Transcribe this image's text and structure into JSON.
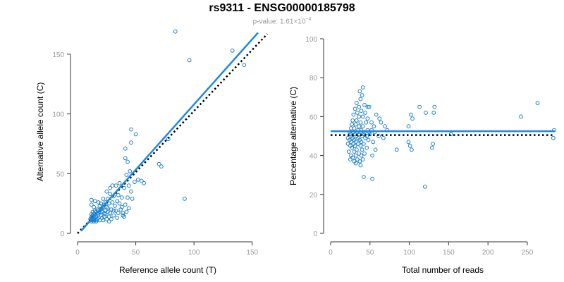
{
  "header": {
    "title": "rs9311 - ENSG00000185798",
    "pvalue_label": "p-value: 1.61×10",
    "pvalue_exponent": "−4"
  },
  "colors": {
    "points": "#1f7fc9",
    "fit_line": "#1e88e5",
    "reference_line": "#000000",
    "axis": "#333333",
    "tick_label": "#999999"
  },
  "chart_data": [
    {
      "type": "scatter",
      "xlabel": "Reference allele count (T)",
      "ylabel": "Alternative allele count (C)",
      "xlim": [
        0,
        155
      ],
      "ylim": [
        0,
        170
      ],
      "xticks": [
        0,
        50,
        100,
        150
      ],
      "yticks": [
        0,
        50,
        100,
        150
      ],
      "grid": false,
      "fit_line": [
        [
          3,
          2
        ],
        [
          155,
          168
        ]
      ],
      "reference_line": [
        [
          0,
          0
        ],
        [
          163,
          167
        ]
      ],
      "points": [
        [
          84,
          169
        ],
        [
          96,
          145
        ],
        [
          133,
          153
        ],
        [
          143,
          141
        ],
        [
          46,
          87
        ],
        [
          50,
          83
        ],
        [
          46,
          76
        ],
        [
          78,
          79
        ],
        [
          41,
          71
        ],
        [
          70,
          58
        ],
        [
          72,
          56
        ],
        [
          41,
          63
        ],
        [
          43,
          60
        ],
        [
          45,
          52
        ],
        [
          42,
          49
        ],
        [
          52,
          45
        ],
        [
          49,
          43
        ],
        [
          55,
          44
        ],
        [
          57,
          42
        ],
        [
          44,
          40
        ],
        [
          40,
          38
        ],
        [
          36,
          42
        ],
        [
          33,
          40
        ],
        [
          30,
          40
        ],
        [
          28,
          38
        ],
        [
          25,
          35
        ],
        [
          28,
          33
        ],
        [
          31,
          31
        ],
        [
          35,
          32
        ],
        [
          38,
          30
        ],
        [
          43,
          30
        ],
        [
          47,
          29
        ],
        [
          92,
          29
        ],
        [
          46,
          35
        ],
        [
          22,
          29
        ],
        [
          26,
          29
        ],
        [
          24,
          26
        ],
        [
          20,
          25
        ],
        [
          18,
          26
        ],
        [
          15,
          27
        ],
        [
          12,
          28
        ],
        [
          12,
          24
        ],
        [
          14,
          22
        ],
        [
          17,
          20
        ],
        [
          19,
          23
        ],
        [
          21,
          21
        ],
        [
          23,
          24
        ],
        [
          25,
          22
        ],
        [
          27,
          25
        ],
        [
          30,
          26
        ],
        [
          32,
          23
        ],
        [
          34,
          27
        ],
        [
          36,
          25
        ],
        [
          29,
          20
        ],
        [
          26,
          18
        ],
        [
          23,
          17
        ],
        [
          20,
          15
        ],
        [
          18,
          13
        ],
        [
          16,
          14
        ],
        [
          14,
          12
        ],
        [
          13,
          13
        ],
        [
          12,
          12
        ],
        [
          13,
          15
        ],
        [
          15,
          16
        ],
        [
          16,
          18
        ],
        [
          18,
          19
        ],
        [
          21,
          18
        ],
        [
          24,
          16
        ],
        [
          27,
          14
        ],
        [
          31,
          15
        ],
        [
          33,
          19
        ],
        [
          37,
          20
        ],
        [
          39,
          17
        ],
        [
          42,
          18
        ],
        [
          39,
          15
        ],
        [
          34,
          13
        ],
        [
          29,
          12
        ],
        [
          25,
          12
        ],
        [
          22,
          11
        ],
        [
          19,
          11
        ],
        [
          17,
          12
        ],
        [
          14,
          10
        ],
        [
          12,
          10
        ],
        [
          12,
          11
        ],
        [
          13,
          11
        ],
        [
          14,
          14
        ],
        [
          16,
          10
        ],
        [
          18,
          16
        ],
        [
          20,
          20
        ],
        [
          22,
          22
        ],
        [
          15,
          19
        ],
        [
          17,
          17
        ],
        [
          13,
          18
        ],
        [
          12,
          16
        ],
        [
          14,
          16
        ],
        [
          12,
          14
        ],
        [
          13,
          12
        ],
        [
          15,
          13
        ],
        [
          16,
          11
        ],
        [
          11,
          12
        ],
        [
          12,
          13
        ],
        [
          14,
          11
        ],
        [
          19,
          18
        ],
        [
          21,
          13
        ],
        [
          24,
          19
        ],
        [
          26,
          21
        ],
        [
          28,
          17
        ],
        [
          31,
          19
        ],
        [
          35,
          17
        ],
        [
          41,
          24
        ],
        [
          38,
          22
        ],
        [
          44,
          21
        ],
        [
          40,
          14
        ],
        [
          27,
          10
        ],
        [
          23,
          14
        ]
      ]
    },
    {
      "type": "scatter",
      "xlabel": "Total number of reads",
      "ylabel": "Percentage alternative (C)",
      "xlim": [
        0,
        285
      ],
      "ylim": [
        0,
        100
      ],
      "xticks": [
        0,
        50,
        100,
        150,
        200,
        250
      ],
      "yticks": [
        0,
        20,
        40,
        60,
        80,
        100
      ],
      "grid": false,
      "fit_line": [
        [
          0,
          52.5
        ],
        [
          285,
          52.5
        ]
      ],
      "reference_line": [
        [
          0,
          50.5
        ],
        [
          285,
          50.5
        ]
      ],
      "points": [
        [
          41,
          75
        ],
        [
          37,
          73
        ],
        [
          40,
          71
        ],
        [
          38,
          69
        ],
        [
          33,
          67
        ],
        [
          43,
          66
        ],
        [
          36,
          65
        ],
        [
          47,
          65
        ],
        [
          49,
          65
        ],
        [
          113,
          65
        ],
        [
          132,
          65
        ],
        [
          31,
          64
        ],
        [
          39,
          63
        ],
        [
          34,
          62
        ],
        [
          44,
          62
        ],
        [
          58,
          61
        ],
        [
          102,
          61
        ],
        [
          121,
          62
        ],
        [
          131,
          62
        ],
        [
          29,
          61
        ],
        [
          36,
          60
        ],
        [
          41,
          60
        ],
        [
          47,
          59
        ],
        [
          62,
          59
        ],
        [
          104,
          59
        ],
        [
          242,
          60
        ],
        [
          263,
          67
        ],
        [
          28,
          58
        ],
        [
          33,
          58
        ],
        [
          38,
          57
        ],
        [
          45,
          57
        ],
        [
          52,
          57
        ],
        [
          64,
          57
        ],
        [
          27,
          56
        ],
        [
          32,
          56
        ],
        [
          36,
          55
        ],
        [
          41,
          55
        ],
        [
          55,
          55
        ],
        [
          69,
          55
        ],
        [
          99,
          55
        ],
        [
          26,
          54
        ],
        [
          30,
          54
        ],
        [
          35,
          53
        ],
        [
          39,
          53
        ],
        [
          47,
          53
        ],
        [
          52,
          53
        ],
        [
          72,
          53
        ],
        [
          24,
          52
        ],
        [
          29,
          52
        ],
        [
          34,
          52
        ],
        [
          38,
          52
        ],
        [
          43,
          52
        ],
        [
          49,
          52
        ],
        [
          56,
          52
        ],
        [
          284,
          53
        ],
        [
          25,
          51
        ],
        [
          31,
          51
        ],
        [
          36,
          51
        ],
        [
          42,
          51
        ],
        [
          50,
          51
        ],
        [
          153,
          51
        ],
        [
          27,
          50
        ],
        [
          33,
          50
        ],
        [
          40,
          50
        ],
        [
          46,
          50
        ],
        [
          61,
          50
        ],
        [
          22,
          49
        ],
        [
          28,
          49
        ],
        [
          35,
          49
        ],
        [
          44,
          49
        ],
        [
          67,
          49
        ],
        [
          283,
          49
        ],
        [
          24,
          48
        ],
        [
          30,
          48
        ],
        [
          37,
          48
        ],
        [
          48,
          48
        ],
        [
          26,
          47
        ],
        [
          32,
          47
        ],
        [
          39,
          47
        ],
        [
          54,
          47
        ],
        [
          99,
          47
        ],
        [
          22,
          46
        ],
        [
          29,
          46
        ],
        [
          35,
          46
        ],
        [
          42,
          46
        ],
        [
          101,
          45
        ],
        [
          130,
          46
        ],
        [
          25,
          45
        ],
        [
          31,
          45
        ],
        [
          38,
          45
        ],
        [
          46,
          44
        ],
        [
          129,
          44
        ],
        [
          27,
          44
        ],
        [
          33,
          43
        ],
        [
          40,
          43
        ],
        [
          57,
          43
        ],
        [
          84,
          43
        ],
        [
          103,
          43
        ],
        [
          23,
          42
        ],
        [
          30,
          42
        ],
        [
          36,
          41
        ],
        [
          43,
          41
        ],
        [
          26,
          40
        ],
        [
          32,
          40
        ],
        [
          39,
          40
        ],
        [
          53,
          40
        ],
        [
          28,
          39
        ],
        [
          34,
          38
        ],
        [
          41,
          38
        ],
        [
          25,
          38
        ],
        [
          30,
          37
        ],
        [
          37,
          37
        ],
        [
          32,
          36
        ],
        [
          38,
          35
        ],
        [
          42,
          29
        ],
        [
          53,
          28
        ],
        [
          120,
          24
        ]
      ]
    }
  ]
}
